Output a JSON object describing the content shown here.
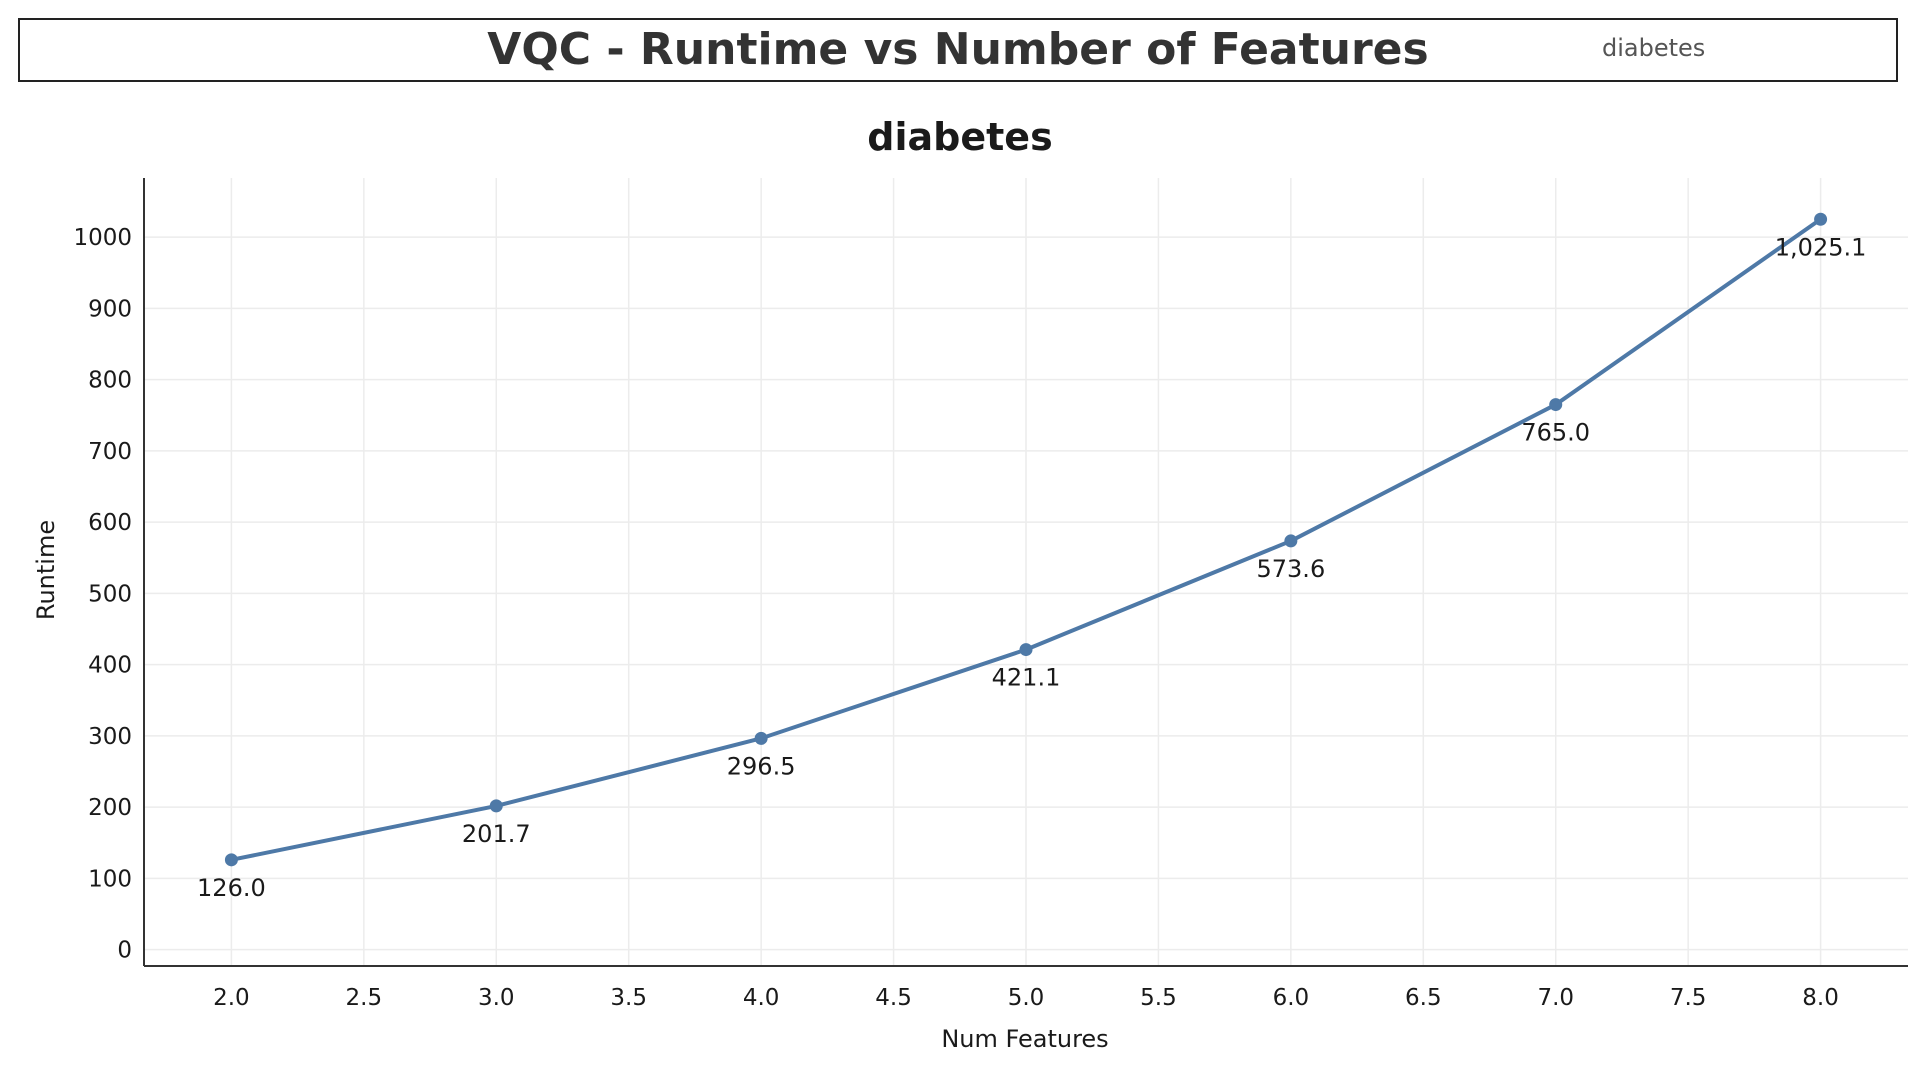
{
  "header": {
    "title": "VQC - Runtime vs Number of Features",
    "filter_label": "diabetes"
  },
  "colors": {
    "line": "#4e79a7",
    "grid": "#ececec",
    "axis": "#333333",
    "text": "#1a1a1a"
  },
  "chart_data": {
    "type": "line",
    "title": "diabetes",
    "xlabel": "Num Features",
    "ylabel": "Runtime",
    "xlim": [
      1.67,
      8.33
    ],
    "ylim": [
      -23,
      1083
    ],
    "x_ticks": [
      2.0,
      2.5,
      3.0,
      3.5,
      4.0,
      4.5,
      5.0,
      5.5,
      6.0,
      6.5,
      7.0,
      7.5,
      8.0
    ],
    "x_tick_labels": [
      "2.0",
      "2.5",
      "3.0",
      "3.5",
      "4.0",
      "4.5",
      "5.0",
      "5.5",
      "6.0",
      "6.5",
      "7.0",
      "7.5",
      "8.0"
    ],
    "y_ticks": [
      0,
      100,
      200,
      300,
      400,
      500,
      600,
      700,
      800,
      900,
      1000
    ],
    "y_tick_labels": [
      "0",
      "100",
      "200",
      "300",
      "400",
      "500",
      "600",
      "700",
      "800",
      "900",
      "1000"
    ],
    "grid": true,
    "series": [
      {
        "x": [
          2,
          3,
          4,
          5,
          6,
          7,
          8
        ],
        "y": [
          126.0,
          201.7,
          296.5,
          421.1,
          573.6,
          765.0,
          1025.1
        ],
        "labels": [
          "126.0",
          "201.7",
          "296.5",
          "421.1",
          "573.6",
          "765.0",
          "1,025.1"
        ]
      }
    ]
  }
}
